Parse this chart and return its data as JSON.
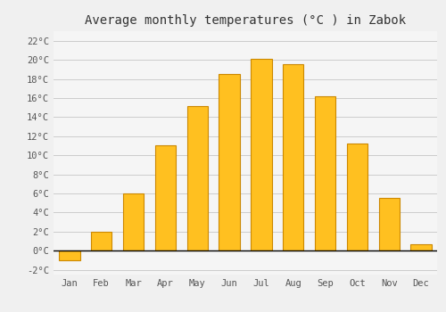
{
  "title": "Average monthly temperatures (°C ) in Zabok",
  "months": [
    "Jan",
    "Feb",
    "Mar",
    "Apr",
    "May",
    "Jun",
    "Jul",
    "Aug",
    "Sep",
    "Oct",
    "Nov",
    "Dec"
  ],
  "temperatures": [
    -1.0,
    2.0,
    6.0,
    11.0,
    15.2,
    18.5,
    20.1,
    19.5,
    16.2,
    11.2,
    5.5,
    0.7
  ],
  "bar_color": "#FFC020",
  "bar_edge_color": "#CC8800",
  "background_color": "#F0F0F0",
  "plot_bg_color": "#F5F5F5",
  "grid_color": "#CCCCCC",
  "ylim": [
    -2.5,
    23.0
  ],
  "yticks": [
    -2,
    0,
    2,
    4,
    6,
    8,
    10,
    12,
    14,
    16,
    18,
    20,
    22
  ],
  "title_fontsize": 10,
  "tick_fontsize": 7.5,
  "font_family": "monospace",
  "bar_width": 0.65
}
